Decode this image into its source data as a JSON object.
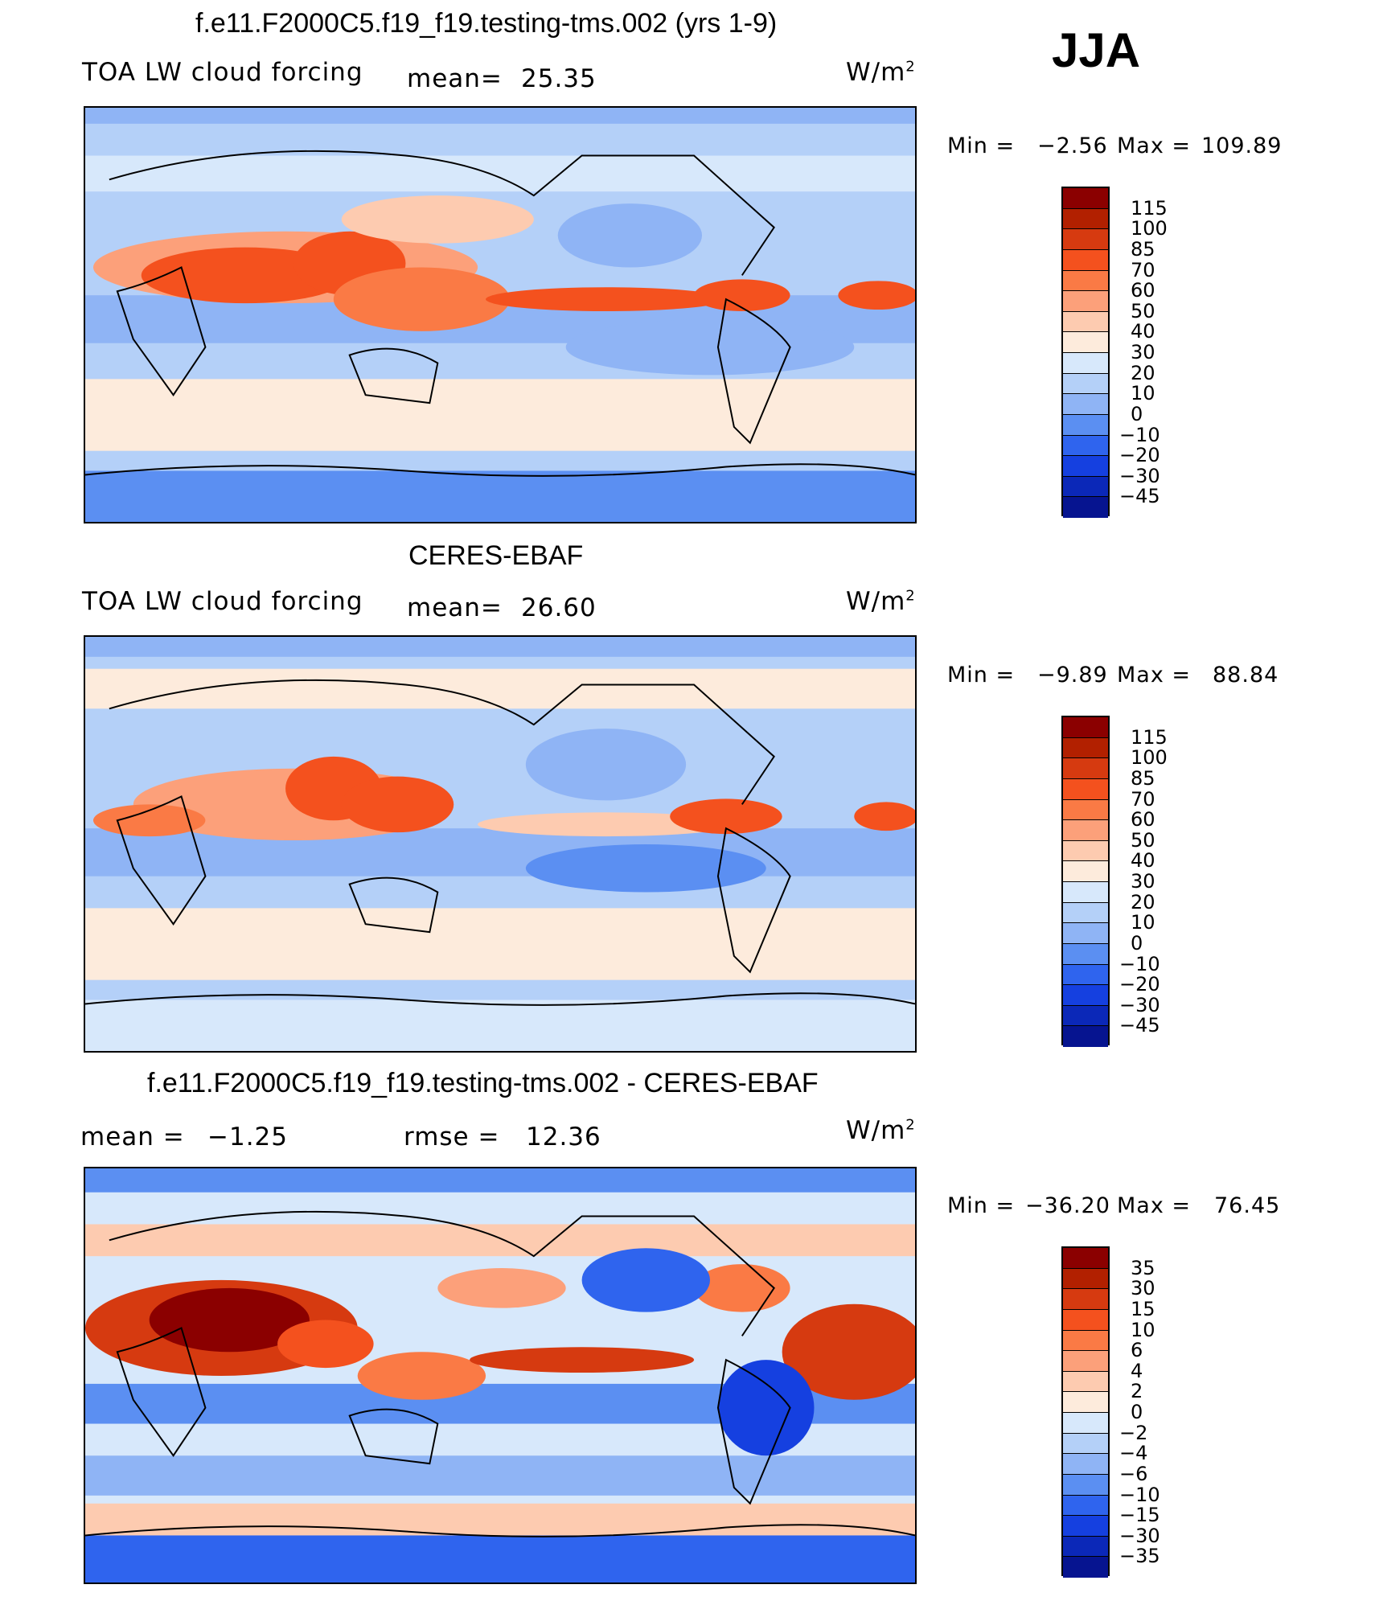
{
  "season": "JJA",
  "panels": [
    {
      "title": "f.e11.F2000C5.f19_f19.testing-tms.002 (yrs 1-9)",
      "left_label": "TOA LW cloud forcing",
      "mid_label": "mean=",
      "mid_value": "25.35",
      "units": "W/m",
      "units_sup": "2",
      "min_label": "Min =",
      "min_value": "−2.56",
      "max_label": "Max =",
      "max_value": "109.89",
      "scale": "abs"
    },
    {
      "title": "CERES-EBAF",
      "left_label": "TOA LW cloud forcing",
      "mid_label": "mean=",
      "mid_value": "26.60",
      "units": "W/m",
      "units_sup": "2",
      "min_label": "Min =",
      "min_value": "−9.89",
      "max_label": "Max =",
      "max_value": "88.84",
      "scale": "abs"
    },
    {
      "title": "f.e11.F2000C5.f19_f19.testing-tms.002 - CERES-EBAF",
      "left_label": "mean =",
      "left_value": "−1.25",
      "mid_label": "rmse =",
      "mid_value": "12.36",
      "units": "W/m",
      "units_sup": "2",
      "min_label": "Min =",
      "min_value": "−36.20",
      "max_label": "Max =",
      "max_value": "76.45",
      "scale": "diff"
    }
  ],
  "colorbars": {
    "abs": {
      "colors": [
        "#8b0000",
        "#b22000",
        "#d63a10",
        "#f4511e",
        "#fa7a45",
        "#fca07a",
        "#fdcbb0",
        "#fdebdc",
        "#d7e8fb",
        "#b4d0f8",
        "#8fb4f5",
        "#5b8ff2",
        "#2f64ee",
        "#1540e0",
        "#0b28b8",
        "#061490"
      ],
      "labels": [
        "115",
        "100",
        "85",
        "70",
        "60",
        "50",
        "40",
        "30",
        "20",
        "10",
        "0",
        "−10",
        "−20",
        "−30",
        "−45"
      ]
    },
    "diff": {
      "colors": [
        "#8b0000",
        "#b22000",
        "#d63a10",
        "#f4511e",
        "#fa7a45",
        "#fca07a",
        "#fdcbb0",
        "#fdebdc",
        "#d7e8fb",
        "#b4d0f8",
        "#8fb4f5",
        "#5b8ff2",
        "#2f64ee",
        "#1540e0",
        "#0b28b8",
        "#061490"
      ],
      "labels": [
        "35",
        "30",
        "15",
        "10",
        "6",
        "4",
        "2",
        "0",
        "−2",
        "−4",
        "−6",
        "−10",
        "−15",
        "−30",
        "−35"
      ]
    }
  }
}
